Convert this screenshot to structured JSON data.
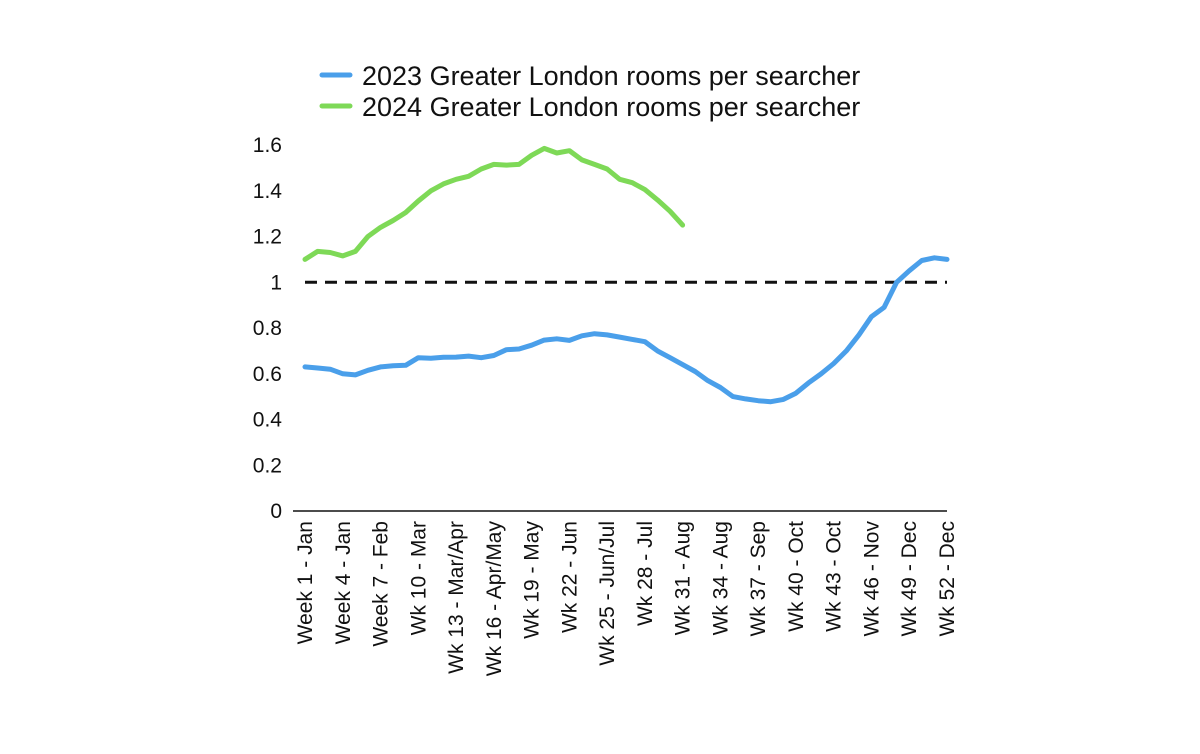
{
  "chart_data": {
    "type": "line",
    "title": "",
    "xlabel": "",
    "ylabel": "",
    "ylim": [
      0,
      1.6
    ],
    "yticks": [
      0,
      0.2,
      0.4,
      0.6,
      0.8,
      1,
      1.2,
      1.4,
      1.6
    ],
    "ytick_labels": [
      "0",
      "0.2",
      "0.4",
      "0.6",
      "0.8",
      "1",
      "1.2",
      "1.4",
      "1.6"
    ],
    "grid": false,
    "legend_position": "top",
    "xticks": [
      {
        "week": 1,
        "label": "Week 1 - Jan"
      },
      {
        "week": 4,
        "label": "Week 4 - Jan"
      },
      {
        "week": 7,
        "label": "Week 7 - Feb"
      },
      {
        "week": 10,
        "label": "Wk 10 - Mar"
      },
      {
        "week": 13,
        "label": "Wk 13 - Mar/Apr"
      },
      {
        "week": 16,
        "label": "Wk 16 - Apr/May"
      },
      {
        "week": 19,
        "label": "Wk 19 - May"
      },
      {
        "week": 22,
        "label": "Wk 22 - Jun"
      },
      {
        "week": 25,
        "label": "Wk 25 - Jun/Jul"
      },
      {
        "week": 28,
        "label": "Wk 28 - Jul"
      },
      {
        "week": 31,
        "label": "Wk 31 - Aug"
      },
      {
        "week": 34,
        "label": "Wk 34 - Aug"
      },
      {
        "week": 37,
        "label": "Wk 37 - Sep"
      },
      {
        "week": 40,
        "label": "Wk 40 - Oct"
      },
      {
        "week": 43,
        "label": "Wk 43 - Oct"
      },
      {
        "week": 46,
        "label": "Wk 46 - Nov"
      },
      {
        "week": 49,
        "label": "Wk 49 - Dec"
      },
      {
        "week": 52,
        "label": "Wk 52 - Dec"
      }
    ],
    "reference_line": {
      "y": 1,
      "style": "dashed",
      "color": "#111111"
    },
    "series": [
      {
        "name": "2023 Greater London rooms per searcher",
        "color": "#4A9FEA",
        "weeks": [
          1,
          2,
          3,
          4,
          5,
          6,
          7,
          8,
          9,
          10,
          11,
          12,
          13,
          14,
          15,
          16,
          17,
          18,
          19,
          20,
          21,
          22,
          23,
          24,
          25,
          26,
          27,
          28,
          29,
          30,
          31,
          32,
          33,
          34,
          35,
          36,
          37,
          38,
          39,
          40,
          41,
          42,
          43,
          44,
          45,
          46,
          47,
          48,
          49,
          50,
          51,
          52
        ],
        "values": [
          0.63,
          0.625,
          0.62,
          0.6,
          0.595,
          0.615,
          0.63,
          0.635,
          0.637,
          0.67,
          0.668,
          0.672,
          0.673,
          0.677,
          0.67,
          0.68,
          0.705,
          0.708,
          0.725,
          0.747,
          0.753,
          0.746,
          0.766,
          0.775,
          0.77,
          0.76,
          0.75,
          0.74,
          0.7,
          0.67,
          0.64,
          0.61,
          0.57,
          0.54,
          0.5,
          0.49,
          0.482,
          0.478,
          0.488,
          0.515,
          0.56,
          0.6,
          0.645,
          0.7,
          0.77,
          0.85,
          0.89,
          1.0,
          1.05,
          1.095,
          1.107,
          1.1
        ]
      },
      {
        "name": "2024 Greater London rooms per searcher",
        "color": "#7ED957",
        "weeks": [
          1,
          2,
          3,
          4,
          5,
          6,
          7,
          8,
          9,
          10,
          11,
          12,
          13,
          14,
          15,
          16,
          17,
          18,
          19,
          20,
          21,
          22,
          23,
          24,
          25,
          26,
          27,
          28,
          29,
          30,
          31
        ],
        "values": [
          1.1,
          1.135,
          1.13,
          1.115,
          1.135,
          1.2,
          1.24,
          1.27,
          1.305,
          1.355,
          1.4,
          1.43,
          1.45,
          1.463,
          1.495,
          1.515,
          1.512,
          1.515,
          1.555,
          1.585,
          1.565,
          1.575,
          1.535,
          1.515,
          1.495,
          1.45,
          1.435,
          1.405,
          1.36,
          1.31,
          1.25
        ]
      }
    ]
  }
}
